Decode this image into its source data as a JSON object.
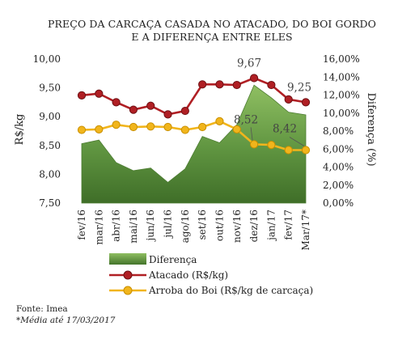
{
  "chart_data": {
    "type": "line",
    "title_lines": [
      "PREÇO DA CARCAÇA CASADA NO ATACADO, DO BOI GORDO",
      "E A DIFERENÇA ENTRE ELES"
    ],
    "categories": [
      "fev/16",
      "mar/16",
      "abr/16",
      "mai/16",
      "jun/16",
      "jul/16",
      "ago/16",
      "set/16",
      "out/16",
      "nov/16",
      "dez/16",
      "jan/17",
      "fev/17",
      "Mar/17*"
    ],
    "ylabel": "R$/kg",
    "ylabel_right": "Diferença (%)",
    "ylim": [
      7.5,
      10.0
    ],
    "yticks": [
      "7,50",
      "8,00",
      "8,50",
      "9,00",
      "9,50",
      "10,00"
    ],
    "ylim_right": [
      0,
      16
    ],
    "yticks_right": [
      "0,00%",
      "2,00%",
      "4,00%",
      "6,00%",
      "8,00%",
      "10,00%",
      "12,00%",
      "14,00%",
      "16,00%"
    ],
    "series": [
      {
        "name": "Diferença",
        "kind": "area",
        "axis": "right",
        "color": "#5a8e3c",
        "values": [
          6.6,
          7.0,
          4.5,
          3.6,
          3.9,
          2.3,
          3.8,
          7.4,
          6.7,
          8.7,
          13.1,
          11.7,
          10.1,
          9.8
        ]
      },
      {
        "name": "Atacado (R$/kg)",
        "kind": "line",
        "axis": "left",
        "color": "#b01f24",
        "values": [
          9.37,
          9.4,
          9.25,
          9.12,
          9.19,
          9.04,
          9.1,
          9.56,
          9.56,
          9.55,
          9.67,
          9.55,
          9.3,
          9.25
        ]
      },
      {
        "name": "Arroba do Boi (R$/kg de carcaça)",
        "kind": "line",
        "axis": "left",
        "color": "#f1b51c",
        "values": [
          8.77,
          8.78,
          8.86,
          8.82,
          8.83,
          8.82,
          8.77,
          8.82,
          8.92,
          8.78,
          8.52,
          8.51,
          8.42,
          8.42
        ]
      }
    ],
    "annotations": [
      {
        "text": "9,67",
        "series": 1,
        "index": 10
      },
      {
        "text": "9,25",
        "series": 1,
        "index": 13
      },
      {
        "text": "8,52",
        "series": 2,
        "index": 10
      },
      {
        "text": "8,42",
        "series": 2,
        "index": 13
      }
    ],
    "legend_position": "bottom",
    "grid": false
  },
  "footer": {
    "source": "Fonte: Imea",
    "note": "*Média até 17/03/2017"
  }
}
